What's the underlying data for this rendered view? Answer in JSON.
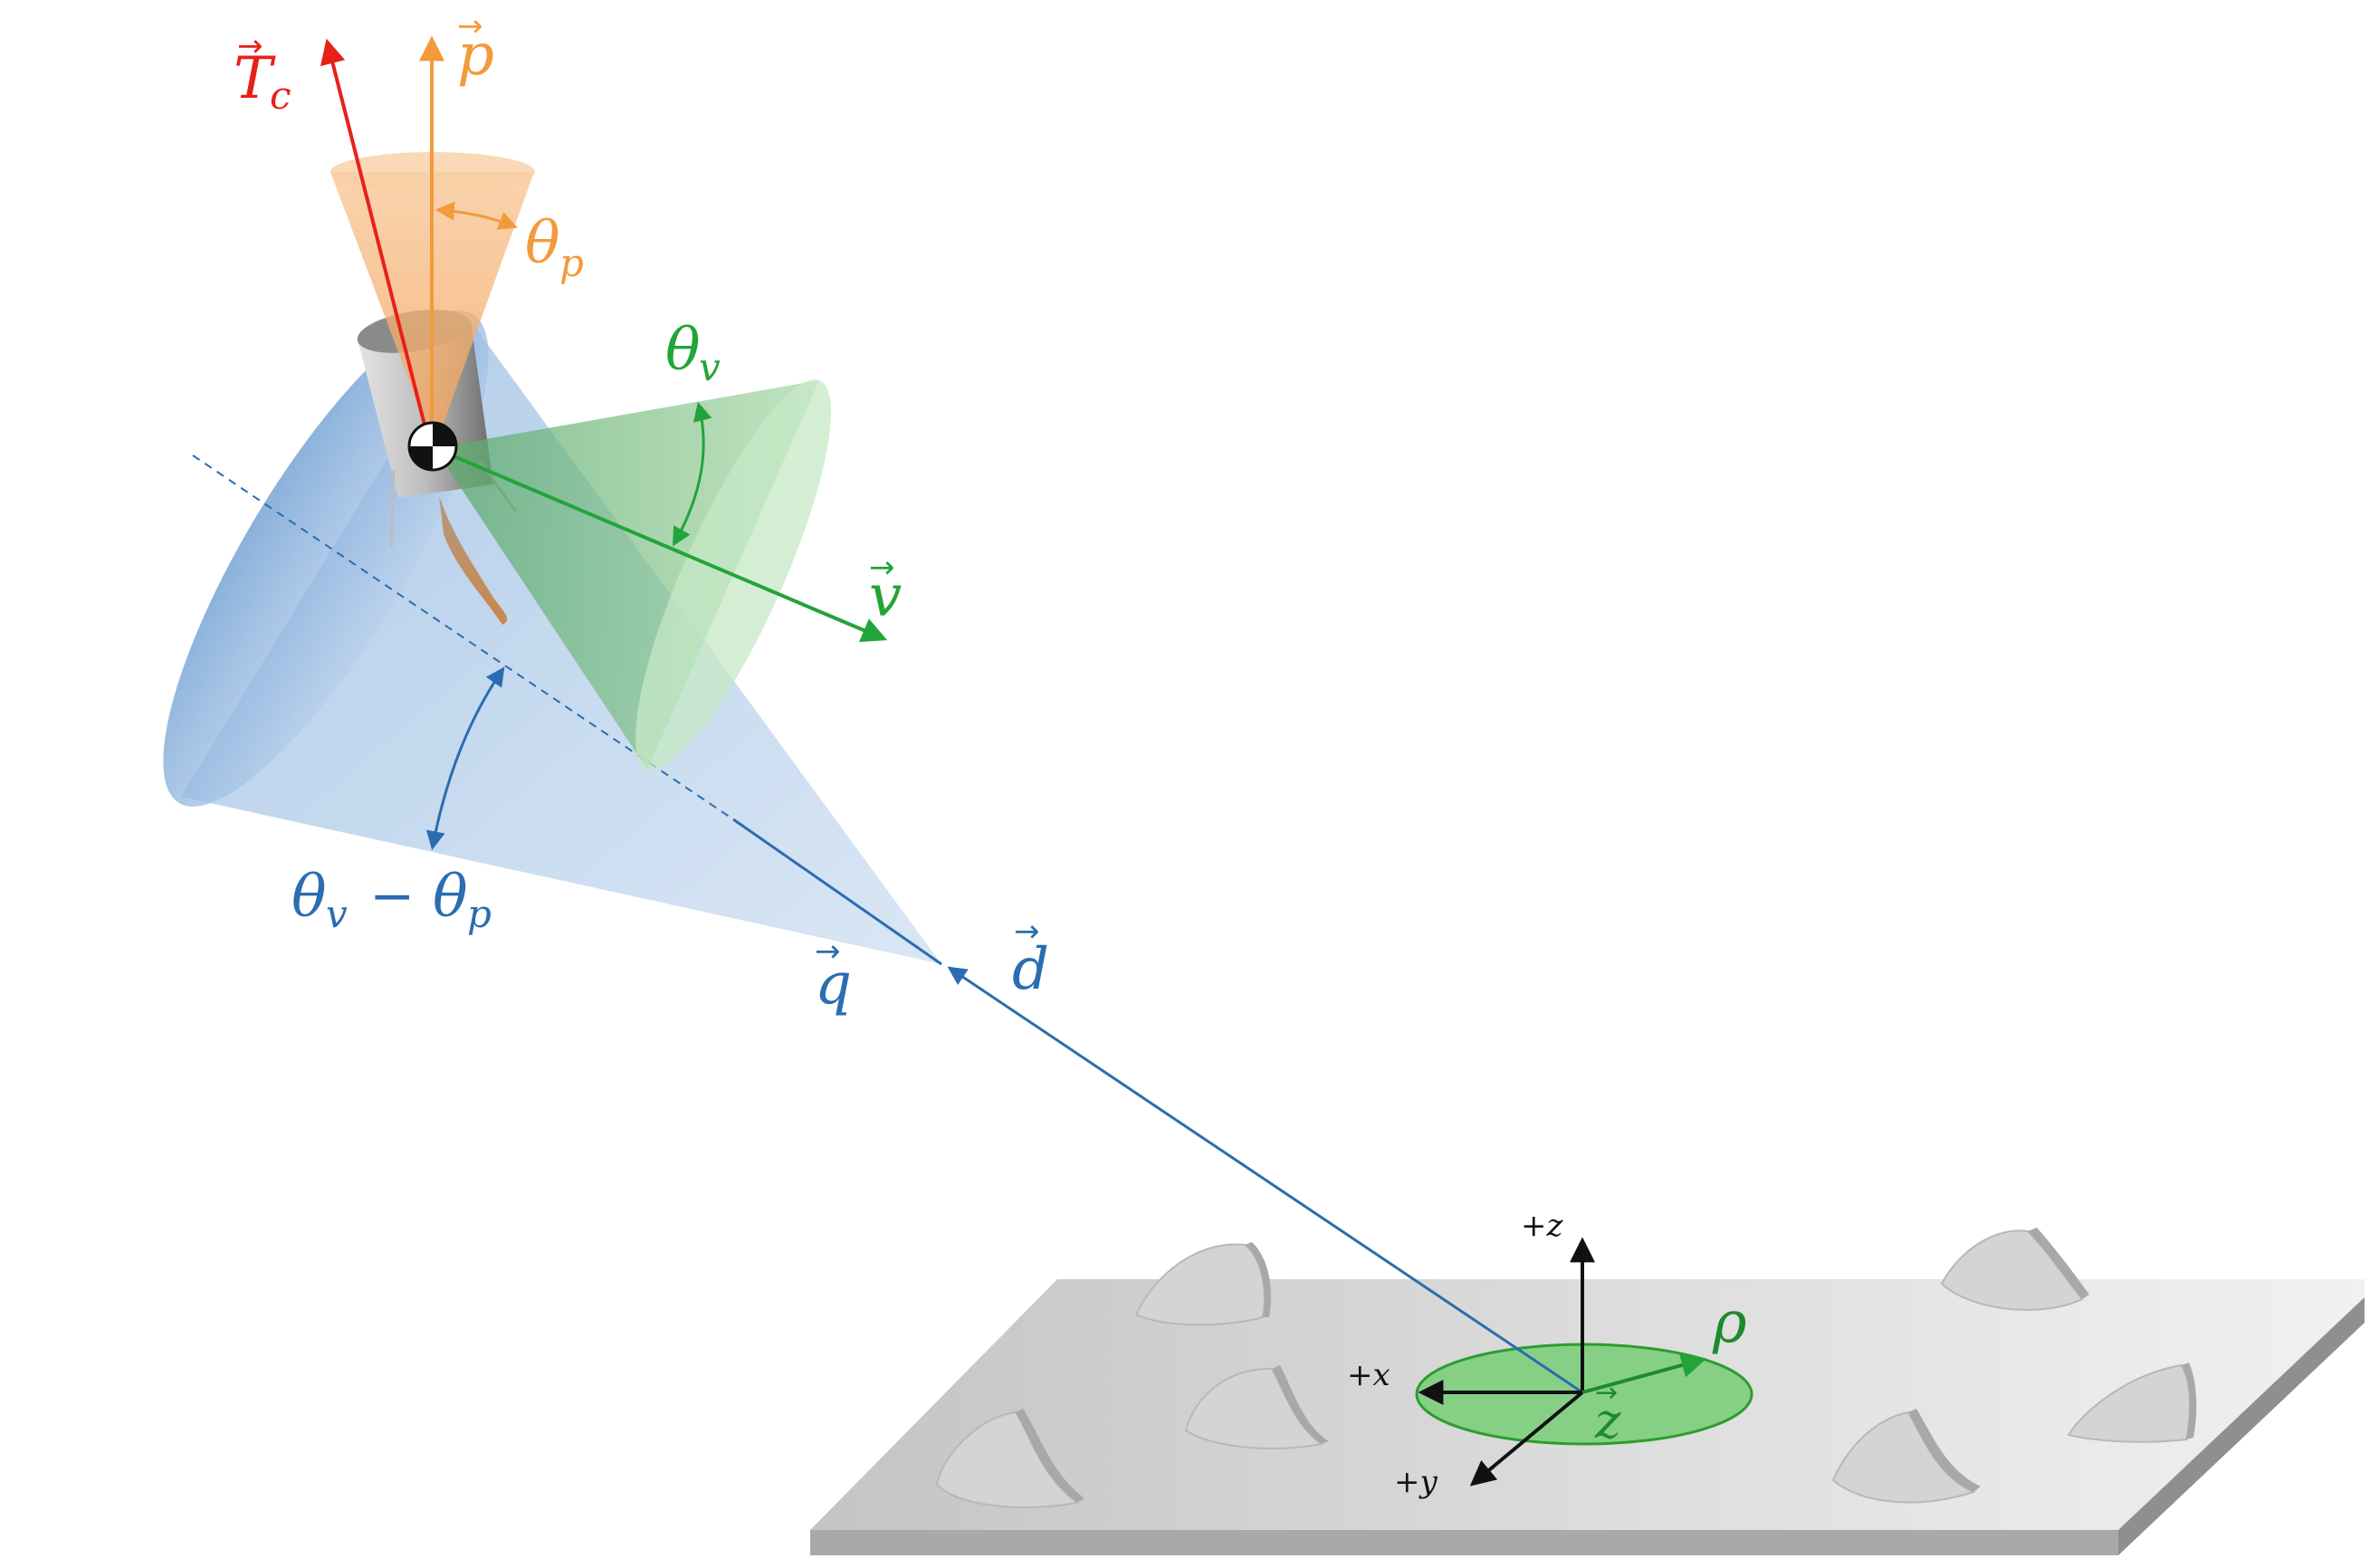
{
  "colors": {
    "red": "#e8201a",
    "orange": "#f39a3a",
    "green": "#23a43a",
    "blue": "#2a6db0",
    "black": "#111111",
    "gray_plate": "#cfcfcf"
  },
  "labels": {
    "thrust": "T",
    "thrust_sub": "c",
    "pointing": "p",
    "theta_p": "θ",
    "theta_p_sub": "p",
    "theta_v": "θ",
    "theta_v_sub": "v",
    "velocity": "v",
    "cone_diff_a": "θ",
    "cone_diff_a_sub": "v",
    "cone_diff_minus": "−",
    "cone_diff_b": "θ",
    "cone_diff_b_sub": "p",
    "q": "q",
    "d": "d",
    "rho": "ρ",
    "z_vec": "z",
    "axis_z": "+z",
    "axis_x": "+x",
    "axis_y": "+y"
  }
}
